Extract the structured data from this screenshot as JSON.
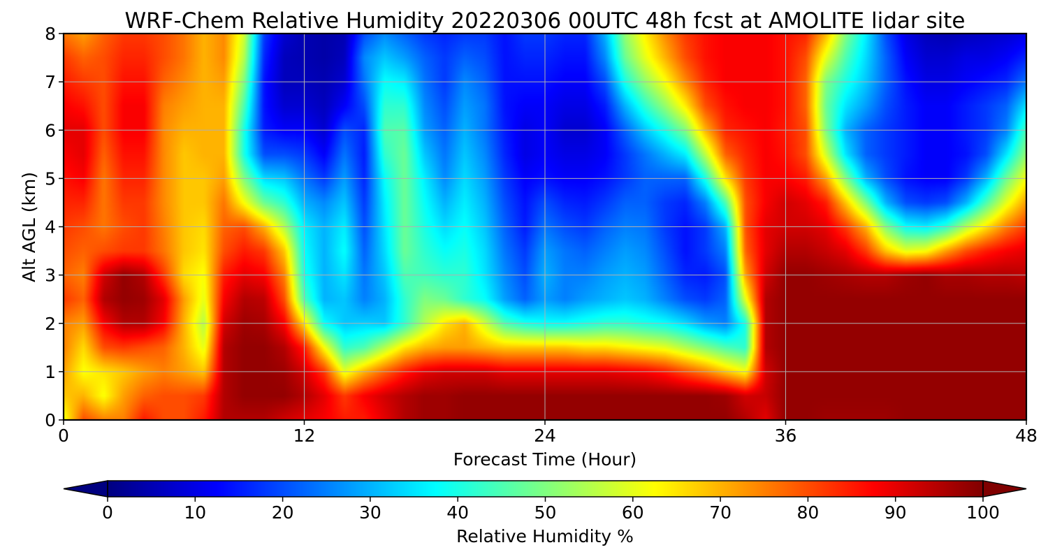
{
  "chart_data": {
    "type": "heatmap",
    "title": "WRF-Chem Relative Humidity 20220306 00UTC 48h fcst at AMOLITE lidar site",
    "xlabel": "Forecast Time (Hour)",
    "ylabel": "Alt AGL (km)",
    "xlim": [
      0,
      48
    ],
    "ylim": [
      0,
      8
    ],
    "xticks": [
      0,
      12,
      24,
      36,
      48
    ],
    "yticks": [
      0,
      1,
      2,
      3,
      4,
      5,
      6,
      7,
      8
    ],
    "grid": true,
    "colormap": "jet",
    "colorbar": {
      "label": "Relative Humidity %",
      "range": [
        0,
        100
      ],
      "ticks": [
        0,
        10,
        20,
        30,
        40,
        50,
        60,
        70,
        80,
        90,
        100
      ],
      "extend": "both",
      "orientation": "horizontal"
    },
    "x": [
      0,
      1,
      2,
      3,
      4,
      5,
      6,
      7,
      8,
      9,
      10,
      11,
      12,
      13,
      14,
      15,
      16,
      17,
      18,
      19,
      20,
      21,
      22,
      23,
      24,
      25,
      26,
      27,
      28,
      29,
      30,
      31,
      32,
      33,
      34,
      35,
      36,
      37,
      38,
      39,
      40,
      41,
      42,
      43,
      44,
      45,
      46,
      47,
      48
    ],
    "y": [
      0,
      0.5,
      1,
      1.5,
      2,
      2.5,
      3,
      3.5,
      4,
      4.5,
      5,
      5.5,
      6,
      6.5,
      7,
      7.5,
      8
    ],
    "z": [
      [
        60,
        80,
        75,
        75,
        85,
        80,
        80,
        85,
        95,
        95,
        95,
        92,
        90,
        88,
        85,
        85,
        90,
        95,
        97,
        97,
        98,
        98,
        98,
        98,
        98,
        98,
        98,
        98,
        98,
        98,
        98,
        98,
        98,
        98,
        95,
        90,
        98,
        98,
        97,
        97,
        97,
        97,
        98,
        98,
        98,
        98,
        98,
        98,
        98
      ],
      [
        68,
        70,
        62,
        72,
        78,
        80,
        80,
        82,
        95,
        98,
        98,
        98,
        95,
        90,
        82,
        88,
        92,
        95,
        97,
        97,
        98,
        98,
        98,
        98,
        98,
        98,
        98,
        98,
        98,
        98,
        98,
        98,
        98,
        97,
        92,
        93,
        98,
        98,
        98,
        98,
        98,
        98,
        98,
        98,
        98,
        98,
        98,
        98,
        98
      ],
      [
        72,
        62,
        65,
        68,
        72,
        75,
        72,
        68,
        95,
        98,
        98,
        97,
        92,
        82,
        60,
        70,
        78,
        85,
        90,
        92,
        92,
        92,
        90,
        90,
        90,
        90,
        90,
        90,
        89,
        88,
        85,
        80,
        75,
        68,
        62,
        92,
        98,
        98,
        98,
        98,
        98,
        98,
        98,
        98,
        98,
        98,
        98,
        98,
        98
      ],
      [
        75,
        66,
        80,
        82,
        80,
        78,
        70,
        60,
        95,
        98,
        98,
        95,
        85,
        62,
        42,
        45,
        55,
        65,
        70,
        72,
        72,
        70,
        68,
        68,
        68,
        68,
        66,
        66,
        64,
        62,
        60,
        55,
        50,
        45,
        42,
        95,
        98,
        98,
        98,
        98,
        98,
        98,
        98,
        98,
        98,
        98,
        98,
        98,
        98
      ],
      [
        75,
        72,
        88,
        95,
        95,
        88,
        70,
        55,
        92,
        97,
        96,
        88,
        65,
        38,
        32,
        33,
        32,
        42,
        55,
        65,
        70,
        58,
        45,
        40,
        38,
        38,
        40,
        42,
        42,
        40,
        38,
        34,
        28,
        25,
        40,
        95,
        98,
        98,
        98,
        98,
        98,
        98,
        98,
        98,
        98,
        98,
        98,
        98,
        98
      ],
      [
        82,
        78,
        95,
        98,
        97,
        90,
        72,
        60,
        88,
        95,
        94,
        80,
        45,
        30,
        32,
        25,
        30,
        42,
        50,
        48,
        42,
        38,
        28,
        22,
        28,
        25,
        28,
        30,
        32,
        30,
        25,
        20,
        18,
        22,
        60,
        95,
        98,
        98,
        98,
        98,
        98,
        98,
        98,
        98,
        98,
        98,
        98,
        98,
        98
      ],
      [
        78,
        75,
        92,
        98,
        95,
        82,
        66,
        62,
        85,
        90,
        88,
        75,
        40,
        30,
        35,
        24,
        32,
        45,
        44,
        42,
        42,
        35,
        26,
        20,
        30,
        25,
        25,
        28,
        30,
        28,
        22,
        16,
        15,
        20,
        72,
        92,
        98,
        98,
        97,
        96,
        95,
        95,
        97,
        98,
        96,
        96,
        95,
        95,
        94
      ],
      [
        80,
        78,
        80,
        82,
        82,
        76,
        68,
        65,
        80,
        85,
        82,
        68,
        38,
        30,
        38,
        22,
        34,
        48,
        42,
        38,
        40,
        34,
        24,
        18,
        28,
        24,
        22,
        25,
        28,
        26,
        20,
        14,
        18,
        25,
        78,
        90,
        95,
        95,
        93,
        90,
        82,
        68,
        60,
        62,
        72,
        80,
        85,
        88,
        90
      ],
      [
        82,
        80,
        76,
        80,
        82,
        75,
        68,
        66,
        78,
        80,
        70,
        55,
        36,
        30,
        36,
        20,
        35,
        48,
        40,
        34,
        38,
        32,
        22,
        15,
        24,
        20,
        18,
        22,
        25,
        24,
        18,
        14,
        18,
        30,
        80,
        90,
        92,
        92,
        90,
        82,
        70,
        50,
        38,
        36,
        42,
        55,
        65,
        75,
        82
      ],
      [
        84,
        84,
        76,
        82,
        82,
        74,
        68,
        68,
        76,
        62,
        48,
        42,
        30,
        26,
        32,
        18,
        36,
        48,
        38,
        30,
        36,
        30,
        20,
        14,
        20,
        16,
        15,
        18,
        22,
        22,
        18,
        16,
        25,
        45,
        80,
        88,
        92,
        90,
        85,
        68,
        50,
        30,
        20,
        18,
        20,
        30,
        45,
        60,
        72
      ],
      [
        86,
        88,
        76,
        84,
        84,
        74,
        68,
        68,
        72,
        50,
        34,
        32,
        24,
        18,
        28,
        16,
        38,
        48,
        36,
        26,
        34,
        28,
        18,
        12,
        14,
        12,
        12,
        14,
        18,
        22,
        22,
        22,
        40,
        65,
        82,
        88,
        88,
        85,
        72,
        50,
        30,
        20,
        14,
        12,
        12,
        18,
        30,
        48,
        62
      ],
      [
        88,
        90,
        78,
        86,
        86,
        74,
        68,
        70,
        70,
        40,
        20,
        20,
        18,
        12,
        24,
        15,
        42,
        48,
        32,
        24,
        32,
        26,
        16,
        10,
        12,
        10,
        10,
        12,
        18,
        24,
        30,
        36,
        56,
        78,
        84,
        88,
        86,
        80,
        58,
        35,
        22,
        18,
        15,
        12,
        12,
        14,
        20,
        35,
        52
      ],
      [
        90,
        90,
        80,
        88,
        88,
        74,
        70,
        70,
        70,
        40,
        15,
        12,
        12,
        8,
        20,
        16,
        45,
        46,
        28,
        22,
        30,
        24,
        15,
        10,
        12,
        8,
        8,
        12,
        22,
        32,
        40,
        50,
        70,
        84,
        86,
        88,
        85,
        80,
        50,
        30,
        22,
        18,
        15,
        12,
        12,
        15,
        18,
        25,
        45
      ],
      [
        88,
        86,
        80,
        88,
        88,
        75,
        72,
        70,
        70,
        45,
        14,
        8,
        8,
        6,
        12,
        20,
        42,
        42,
        26,
        20,
        28,
        24,
        14,
        12,
        12,
        10,
        10,
        15,
        30,
        42,
        52,
        64,
        80,
        86,
        88,
        88,
        86,
        78,
        48,
        35,
        28,
        20,
        15,
        12,
        12,
        15,
        18,
        22,
        35
      ],
      [
        85,
        82,
        80,
        86,
        86,
        78,
        74,
        70,
        72,
        50,
        14,
        6,
        6,
        5,
        8,
        24,
        38,
        36,
        24,
        18,
        26,
        22,
        14,
        14,
        14,
        12,
        12,
        20,
        40,
        52,
        62,
        74,
        84,
        88,
        88,
        88,
        86,
        78,
        50,
        40,
        32,
        22,
        14,
        10,
        10,
        12,
        14,
        16,
        24
      ],
      [
        82,
        78,
        80,
        84,
        84,
        80,
        76,
        70,
        74,
        55,
        16,
        6,
        5,
        4,
        6,
        26,
        32,
        28,
        22,
        18,
        22,
        20,
        14,
        16,
        16,
        14,
        14,
        26,
        48,
        60,
        70,
        80,
        86,
        88,
        88,
        88,
        86,
        80,
        60,
        45,
        34,
        22,
        12,
        8,
        8,
        10,
        10,
        12,
        16
      ],
      [
        76,
        72,
        78,
        82,
        82,
        80,
        76,
        70,
        74,
        58,
        18,
        8,
        5,
        4,
        5,
        20,
        26,
        22,
        18,
        16,
        18,
        18,
        14,
        18,
        18,
        16,
        16,
        30,
        52,
        64,
        74,
        82,
        86,
        88,
        88,
        88,
        86,
        84,
        70,
        50,
        36,
        20,
        10,
        6,
        5,
        6,
        7,
        8,
        10
      ]
    ]
  }
}
